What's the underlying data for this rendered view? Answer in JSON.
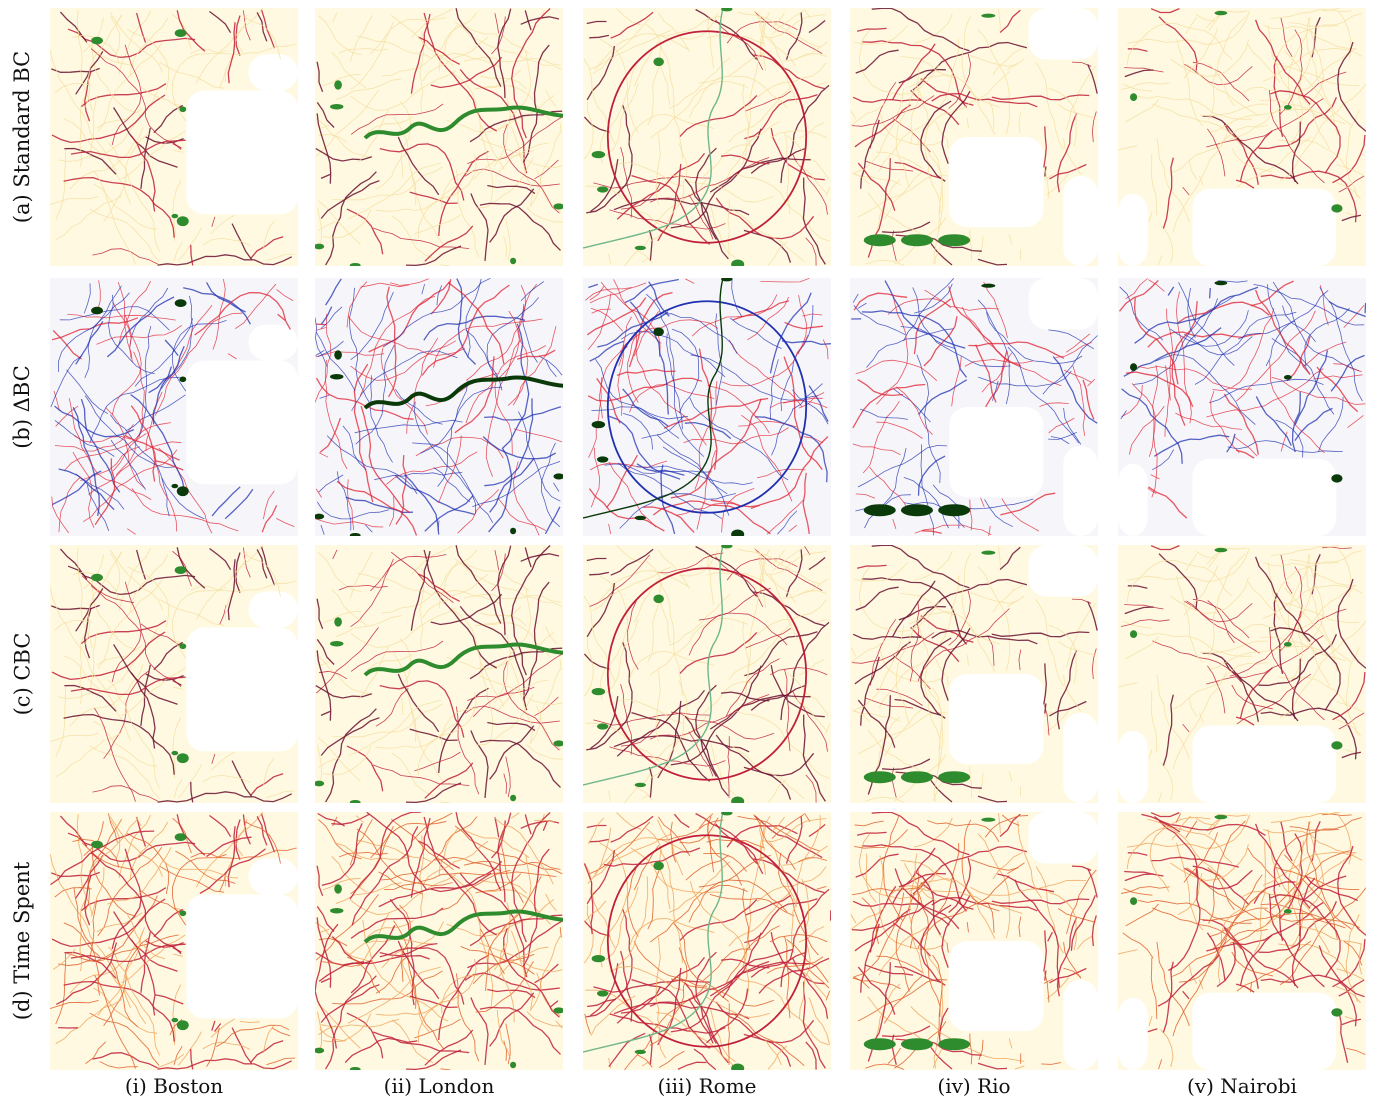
{
  "figure": {
    "rows": [
      {
        "id": "a",
        "label": "(a) Standard BC",
        "style": "standard"
      },
      {
        "id": "b",
        "label": "(b) ΔBC",
        "style": "delta"
      },
      {
        "id": "c",
        "label": "(c) CBC",
        "style": "cbc"
      },
      {
        "id": "d",
        "label": "(d) Time Spent",
        "style": "time"
      }
    ],
    "columns": [
      {
        "id": "i",
        "label": "(i) Boston",
        "shape": "boston"
      },
      {
        "id": "ii",
        "label": "(ii) London",
        "shape": "london"
      },
      {
        "id": "iii",
        "label": "(iii) Rome",
        "shape": "rome"
      },
      {
        "id": "iv",
        "label": "(iv) Rio",
        "shape": "rio"
      },
      {
        "id": "v",
        "label": "(v) Nairobi",
        "shape": "nairobi"
      }
    ],
    "colors": {
      "background_fill": "#fff4c8",
      "low_road": "#f5dfa0",
      "mid_road": "#e8904a",
      "high_road": "#c0203a",
      "top_road": "#6a1030",
      "green_space": "#2e8b2e",
      "delta_positive": "#2030b0",
      "delta_negative": "#e02030",
      "delta_background": "#eeeef6",
      "delta_green": "#0a3a0a"
    }
  }
}
